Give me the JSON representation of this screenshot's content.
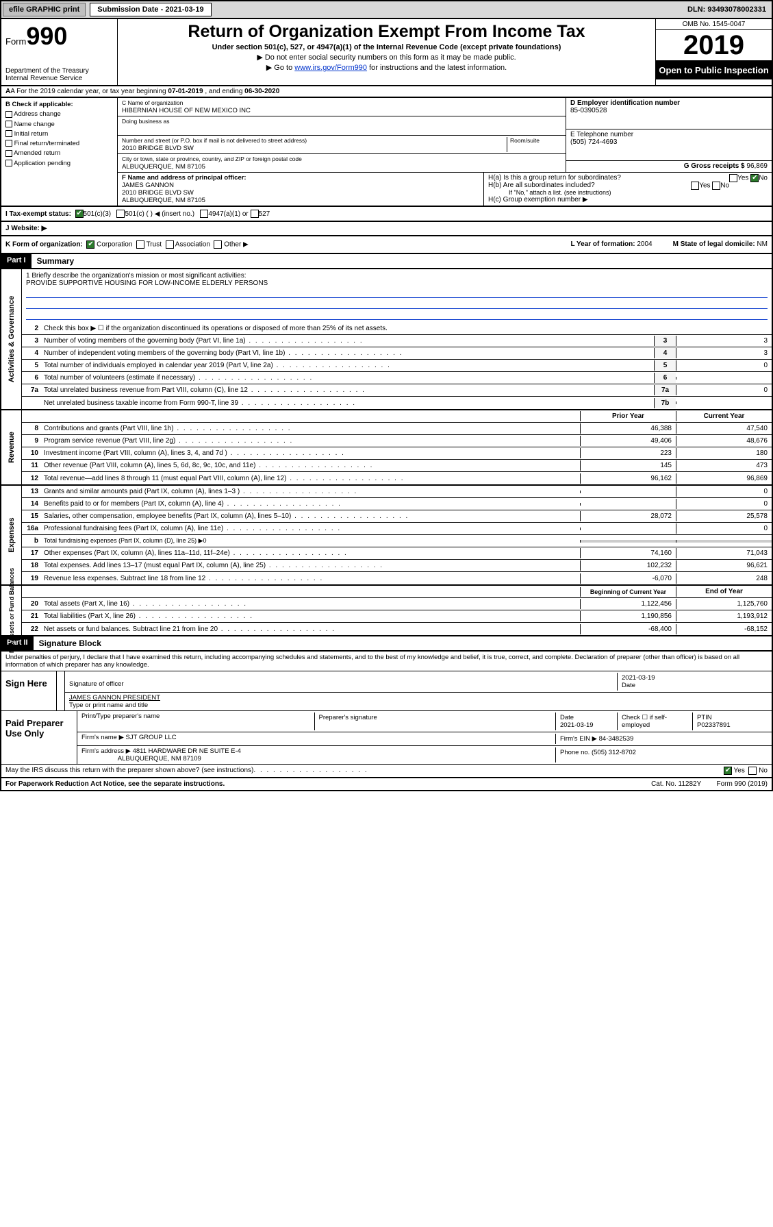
{
  "topbar": {
    "efile": "efile GRAPHIC print",
    "subdate_label": "Submission Date - 2021-03-19",
    "dln": "DLN: 93493078002331"
  },
  "header": {
    "form_prefix": "Form",
    "form_number": "990",
    "dept": "Department of the Treasury\nInternal Revenue Service",
    "title": "Return of Organization Exempt From Income Tax",
    "subtitle": "Under section 501(c), 527, or 4947(a)(1) of the Internal Revenue Code (except private foundations)",
    "note1": "▶ Do not enter social security numbers on this form as it may be made public.",
    "note2_pre": "▶ Go to ",
    "note2_link": "www.irs.gov/Form990",
    "note2_post": " for instructions and the latest information.",
    "omb": "OMB No. 1545-0047",
    "year": "2019",
    "open": "Open to Public Inspection"
  },
  "period": {
    "prefix": "A For the 2019 calendar year, or tax year beginning ",
    "begin": "07-01-2019",
    "mid": " , and ending ",
    "end": "06-30-2020"
  },
  "boxB": {
    "label": "B Check if applicable:",
    "items": [
      "Address change",
      "Name change",
      "Initial return",
      "Final return/terminated",
      "Amended return",
      "Application pending"
    ]
  },
  "boxC": {
    "name_label": "C Name of organization",
    "name": "HIBERNIAN HOUSE OF NEW MEXICO INC",
    "dba_label": "Doing business as",
    "addr_label": "Number and street (or P.O. box if mail is not delivered to street address)",
    "room_label": "Room/suite",
    "addr": "2010 BRIDGE BLVD SW",
    "city_label": "City or town, state or province, country, and ZIP or foreign postal code",
    "city": "ALBUQUERQUE, NM  87105"
  },
  "boxD": {
    "label": "D Employer identification number",
    "val": "85-0390528"
  },
  "boxE": {
    "label": "E Telephone number",
    "val": "(505) 724-4693"
  },
  "boxG": {
    "label": "G Gross receipts $",
    "val": "96,869"
  },
  "boxF": {
    "label": "F Name and address of principal officer:",
    "name": "JAMES GANNON",
    "addr1": "2010 BRIDGE BLVD SW",
    "addr2": "ALBUQUERQUE, NM  87105"
  },
  "boxH": {
    "a": "H(a)  Is this a group return for subordinates?",
    "b": "H(b)  Are all subordinates included?",
    "b_note": "If \"No,\" attach a list. (see instructions)",
    "c": "H(c)  Group exemption number ▶",
    "yes": "Yes",
    "no": "No"
  },
  "boxI": {
    "label": "I   Tax-exempt status:",
    "c3": "501(c)(3)",
    "c": "501(c) (   ) ◀ (insert no.)",
    "a1": "4947(a)(1) or",
    "s527": "527"
  },
  "boxJ": {
    "label": "J   Website: ▶"
  },
  "boxK": {
    "label": "K Form of organization:",
    "corp": "Corporation",
    "trust": "Trust",
    "assoc": "Association",
    "other": "Other ▶"
  },
  "boxL": {
    "label": "L Year of formation:",
    "val": "2004"
  },
  "boxM": {
    "label": "M State of legal domicile:",
    "val": "NM"
  },
  "part1": {
    "tag": "Part I",
    "title": "Summary"
  },
  "part2": {
    "tag": "Part II",
    "title": "Signature Block"
  },
  "mission": {
    "label": "1  Briefly describe the organization's mission or most significant activities:",
    "text": "PROVIDE SUPPORTIVE HOUSING FOR LOW-INCOME ELDERLY PERSONS"
  },
  "sectA": {
    "vert": "Activities & Governance",
    "lines": [
      {
        "n": "2",
        "d": "Check this box ▶ ☐  if the organization discontinued its operations or disposed of more than 25% of its net assets."
      },
      {
        "n": "3",
        "d": "Number of voting members of the governing body (Part VI, line 1a)",
        "box": "3",
        "v": "3"
      },
      {
        "n": "4",
        "d": "Number of independent voting members of the governing body (Part VI, line 1b)",
        "box": "4",
        "v": "3"
      },
      {
        "n": "5",
        "d": "Total number of individuals employed in calendar year 2019 (Part V, line 2a)",
        "box": "5",
        "v": "0"
      },
      {
        "n": "6",
        "d": "Total number of volunteers (estimate if necessary)",
        "box": "6",
        "v": ""
      },
      {
        "n": "7a",
        "d": "Total unrelated business revenue from Part VIII, column (C), line 12",
        "box": "7a",
        "v": "0"
      },
      {
        "n": "",
        "d": "Net unrelated business taxable income from Form 990-T, line 39",
        "box": "7b",
        "v": ""
      }
    ]
  },
  "colhdr": {
    "prior": "Prior Year",
    "current": "Current Year"
  },
  "sectRev": {
    "vert": "Revenue",
    "lines": [
      {
        "n": "8",
        "d": "Contributions and grants (Part VIII, line 1h)",
        "p": "46,388",
        "c": "47,540"
      },
      {
        "n": "9",
        "d": "Program service revenue (Part VIII, line 2g)",
        "p": "49,406",
        "c": "48,676"
      },
      {
        "n": "10",
        "d": "Investment income (Part VIII, column (A), lines 3, 4, and 7d )",
        "p": "223",
        "c": "180"
      },
      {
        "n": "11",
        "d": "Other revenue (Part VIII, column (A), lines 5, 6d, 8c, 9c, 10c, and 11e)",
        "p": "145",
        "c": "473"
      },
      {
        "n": "12",
        "d": "Total revenue—add lines 8 through 11 (must equal Part VIII, column (A), line 12)",
        "p": "96,162",
        "c": "96,869"
      }
    ]
  },
  "sectExp": {
    "vert": "Expenses",
    "lines": [
      {
        "n": "13",
        "d": "Grants and similar amounts paid (Part IX, column (A), lines 1–3 )",
        "p": "",
        "c": "0"
      },
      {
        "n": "14",
        "d": "Benefits paid to or for members (Part IX, column (A), line 4)",
        "p": "",
        "c": "0"
      },
      {
        "n": "15",
        "d": "Salaries, other compensation, employee benefits (Part IX, column (A), lines 5–10)",
        "p": "28,072",
        "c": "25,578"
      },
      {
        "n": "16a",
        "d": "Professional fundraising fees (Part IX, column (A), line 11e)",
        "p": "",
        "c": "0"
      },
      {
        "n": "b",
        "d": "Total fundraising expenses (Part IX, column (D), line 25) ▶0",
        "p": "—",
        "c": "—"
      },
      {
        "n": "17",
        "d": "Other expenses (Part IX, column (A), lines 11a–11d, 11f–24e)",
        "p": "74,160",
        "c": "71,043"
      },
      {
        "n": "18",
        "d": "Total expenses. Add lines 13–17 (must equal Part IX, column (A), line 25)",
        "p": "102,232",
        "c": "96,621"
      },
      {
        "n": "19",
        "d": "Revenue less expenses. Subtract line 18 from line 12",
        "p": "-6,070",
        "c": "248"
      }
    ]
  },
  "colhdr2": {
    "prior": "Beginning of Current Year",
    "current": "End of Year"
  },
  "sectNet": {
    "vert": "Net Assets or Fund Balances",
    "lines": [
      {
        "n": "20",
        "d": "Total assets (Part X, line 16)",
        "p": "1,122,456",
        "c": "1,125,760"
      },
      {
        "n": "21",
        "d": "Total liabilities (Part X, line 26)",
        "p": "1,190,856",
        "c": "1,193,912"
      },
      {
        "n": "22",
        "d": "Net assets or fund balances. Subtract line 21 from line 20",
        "p": "-68,400",
        "c": "-68,152"
      }
    ]
  },
  "sig": {
    "decl": "Under penalties of perjury, I declare that I have examined this return, including accompanying schedules and statements, and to the best of my knowledge and belief, it is true, correct, and complete. Declaration of preparer (other than officer) is based on all information of which preparer has any knowledge.",
    "sign_here": "Sign Here",
    "sig_officer": "Signature of officer",
    "date": "Date",
    "date_val": "2021-03-19",
    "officer_name": "JAMES GANNON  PRESIDENT",
    "type_name": "Type or print name and title",
    "paid": "Paid Preparer Use Only",
    "prep_name_lbl": "Print/Type preparer's name",
    "prep_sig_lbl": "Preparer's signature",
    "prep_date": "2021-03-19",
    "check_self": "Check ☐ if self-employed",
    "ptin_lbl": "PTIN",
    "ptin": "P02337891",
    "firm_name_lbl": "Firm's name   ▶",
    "firm_name": "SJT GROUP LLC",
    "firm_ein_lbl": "Firm's EIN ▶",
    "firm_ein": "84-3482539",
    "firm_addr_lbl": "Firm's address ▶",
    "firm_addr": "4811 HARDWARE DR NE SUITE E-4",
    "firm_city": "ALBUQUERQUE, NM  87109",
    "phone_lbl": "Phone no.",
    "phone": "(505) 312-8702",
    "discuss": "May the IRS discuss this return with the preparer shown above? (see instructions)",
    "yes": "Yes",
    "no": "No"
  },
  "footer": {
    "left": "For Paperwork Reduction Act Notice, see the separate instructions.",
    "mid": "Cat. No. 11282Y",
    "right": "Form 990 (2019)"
  }
}
